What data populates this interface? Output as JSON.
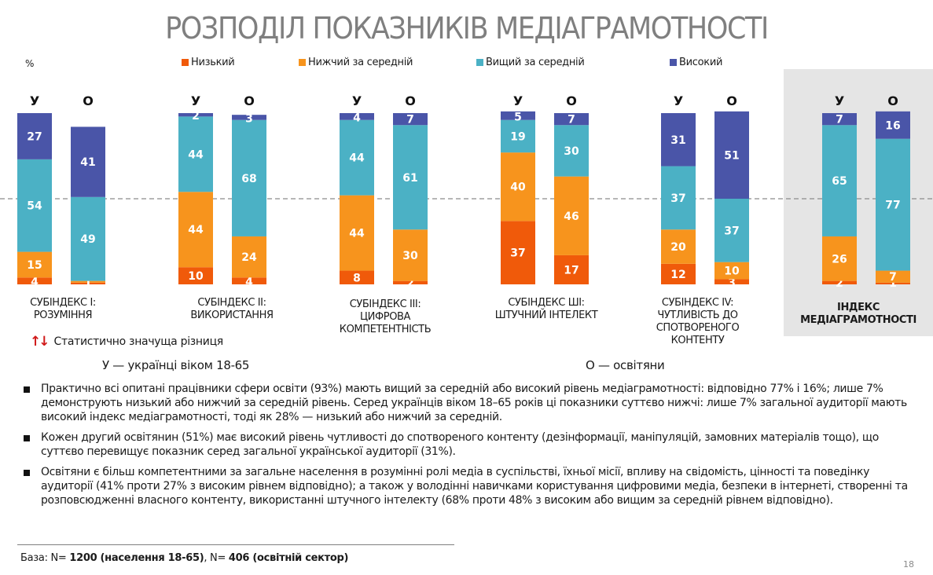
{
  "title": "РОЗПОДІЛ ПОКАЗНИКІВ МЕДІАГРАМОТНОСТІ",
  "unit_label": "%",
  "legend": [
    {
      "key": "low",
      "label": "Низький",
      "color": "#f05a0a"
    },
    {
      "key": "below_avg",
      "label": "Нижчий за середній",
      "color": "#f7941d"
    },
    {
      "key": "above_avg",
      "label": "Вищий за середній",
      "color": "#4bb1c5"
    },
    {
      "key": "high",
      "label": "Високий",
      "color": "#4a55a8"
    }
  ],
  "significance_note": "Статистично значуща різниця",
  "group_key": {
    "u": "У — українці віком 18-65",
    "o": "О — освітяни"
  },
  "chart_data": {
    "type": "bar",
    "stacked": true,
    "title": "РОЗПОДІЛ ПОКАЗНИКІВ МЕДІАГРАМОТНОСТІ",
    "ylabel": "%",
    "ylim": [
      0,
      100
    ],
    "reference_line": 50,
    "legend_position": "top",
    "series_order": [
      "Низький",
      "Нижчий за середній",
      "Вищий за середній",
      "Високий"
    ],
    "groups": [
      {
        "label_lines": [
          "СУБІНДЕКС І:",
          "РОЗУМІННЯ"
        ],
        "highlight": false,
        "bars": [
          {
            "name": "У",
            "values": [
              4,
              15,
              54,
              27
            ]
          },
          {
            "name": "О",
            "values": [
              1,
              1,
              49,
              41
            ]
          }
        ]
      },
      {
        "label_lines": [
          "СУБІНДЕКС ІІ:",
          "ВИКОРИСТАННЯ"
        ],
        "highlight": false,
        "bars": [
          {
            "name": "У",
            "values": [
              10,
              44,
              44,
              2
            ]
          },
          {
            "name": "О",
            "values": [
              4,
              24,
              68,
              3
            ]
          }
        ]
      },
      {
        "label_lines": [
          "СУБІНДЕКС ІІІ:",
          "ЦИФРОВА",
          "КОМПЕТЕНТНІСТЬ"
        ],
        "highlight": false,
        "bars": [
          {
            "name": "У",
            "values": [
              8,
              44,
              44,
              4
            ]
          },
          {
            "name": "О",
            "values": [
              2,
              30,
              61,
              7
            ]
          }
        ]
      },
      {
        "label_lines": [
          "СУБІНДЕКС ШІ:",
          "ШТУЧНИЙ ІНТЕЛЕКТ"
        ],
        "highlight": false,
        "bars": [
          {
            "name": "У",
            "values": [
              37,
              40,
              19,
              5
            ]
          },
          {
            "name": "О",
            "values": [
              17,
              46,
              30,
              7
            ]
          }
        ]
      },
      {
        "label_lines": [
          "СУБІНДЕКС IV:",
          "ЧУТЛИВІСТЬ ДО",
          "СПОТВОРЕНОГО",
          "КОНТЕНТУ"
        ],
        "highlight": false,
        "bars": [
          {
            "name": "У",
            "values": [
              12,
              20,
              37,
              31
            ]
          },
          {
            "name": "О",
            "values": [
              3,
              10,
              37,
              51
            ]
          }
        ]
      },
      {
        "label_lines": [
          "ІНДЕКС",
          "МЕДІАГРАМОТНОСТІ"
        ],
        "highlight": true,
        "bars": [
          {
            "name": "У",
            "values": [
              2,
              26,
              65,
              7
            ]
          },
          {
            "name": "О",
            "values": [
              1,
              7,
              77,
              16
            ]
          }
        ]
      }
    ]
  },
  "bullets": [
    "Практично всі опитані працівники сфери освіти (93%) мають вищий за середній або високий рівень медіаграмотності: відповідно 77% і 16%; лише 7% демонструють низький або нижчий за середній рівень. Серед українців віком 18–65 років ці показники суттєво нижчі: лише 7% загальної аудиторії мають високий індекс медіаграмотності, тоді як 28% — низький або нижчий за середній.",
    "Кожен другий освітянин (51%) має високий рівень чутливості до спотвореного контенту (дезінформації, маніпуляцій, замовних матеріалів тощо), що суттєво перевищує показник серед загальної української аудиторії (31%).",
    "Освітяни є більш компетентними за загальне населення в розумінні ролі медіа в суспільстві, їхньої місії, впливу на свідомість, цінності та поведінку аудиторії (41% проти 27% з високим рівнем відповідно); а також у володінні навичками користування цифровими медіа, безпеки в інтернеті, створенні та розповсюдженні власного контенту, використанні штучного інтелекту (68% проти 48% з високим або вищим за середній рівнем відповідно)."
  ],
  "base": {
    "prefix": "База: N= ",
    "n1": "1200 (населення 18-65)",
    "mid": ", N= ",
    "n2": "406 (освітній сектор)"
  },
  "page_number": "18"
}
